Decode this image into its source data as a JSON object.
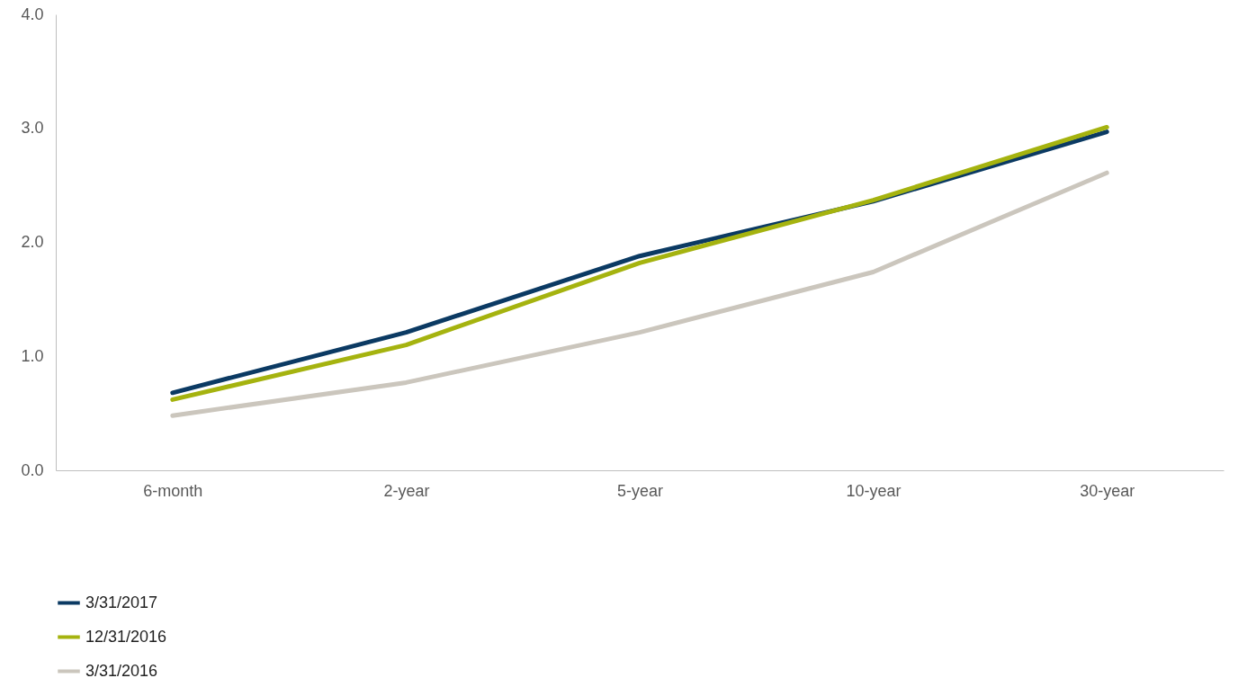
{
  "chart_data": {
    "type": "line",
    "categories": [
      "6-month",
      "2-year",
      "5-year",
      "10-year",
      "30-year"
    ],
    "series": [
      {
        "name": "3/31/2017",
        "color": "#0b3a63",
        "values": [
          0.68,
          1.21,
          1.88,
          2.36,
          2.97
        ]
      },
      {
        "name": "12/31/2016",
        "color": "#a5b30f",
        "values": [
          0.62,
          1.1,
          1.82,
          2.37,
          3.01
        ]
      },
      {
        "name": "3/31/2016",
        "color": "#cbc6bd",
        "values": [
          0.48,
          0.77,
          1.21,
          1.74,
          2.61
        ]
      }
    ],
    "ylim": [
      0,
      4
    ],
    "yticks": [
      {
        "value": 0,
        "label": "0.0"
      },
      {
        "value": 1,
        "label": "1.0"
      },
      {
        "value": 2,
        "label": "2.0"
      },
      {
        "value": 3,
        "label": "3.0"
      },
      {
        "value": 4,
        "label": "4.0"
      }
    ],
    "grid": false,
    "legend": "bottom left",
    "marker": "none",
    "line_style": "solid"
  }
}
